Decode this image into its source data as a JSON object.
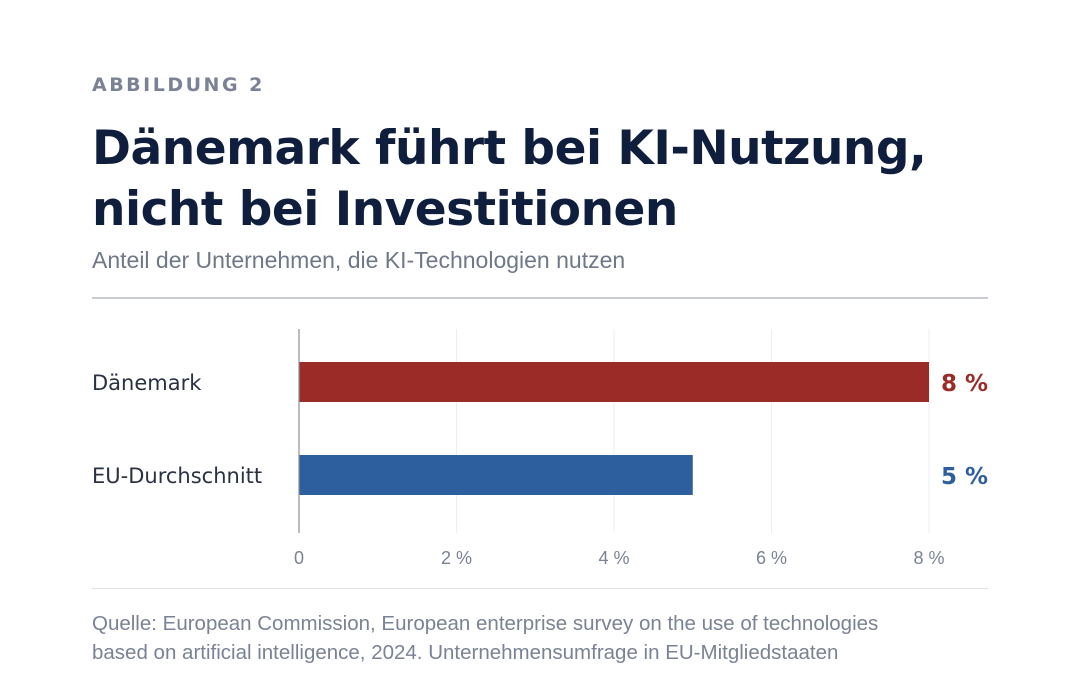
{
  "figure": {
    "kicker": "ABBILDUNG 2",
    "title_lines": [
      "Dänemark führt bei KI-Nutzung,",
      "nicht bei Investitionen"
    ],
    "subtitle": "Anteil der Unternehmen, die KI-Technologien nutzen",
    "source_lines": [
      "Quelle: European Commission, European enterprise survey on the use of technologies",
      "based on artificial intelligence, 2024. Unternehmensumfrage in EU-Mitgliedstaaten"
    ]
  },
  "chart_data": {
    "type": "bar",
    "orientation": "horizontal",
    "categories": [
      "Dänemark",
      "EU-Durchschnitt"
    ],
    "values": [
      8,
      5
    ],
    "value_labels": [
      "8 %",
      "5 %"
    ],
    "colors": [
      "#9b2b27",
      "#2d5e9e"
    ],
    "xlim": [
      0,
      8
    ],
    "x_ticks": [
      0,
      2,
      4,
      6,
      8
    ],
    "x_tick_labels": [
      "0",
      "2 %",
      "4 %",
      "6 %",
      "8 %"
    ],
    "grid": true
  }
}
